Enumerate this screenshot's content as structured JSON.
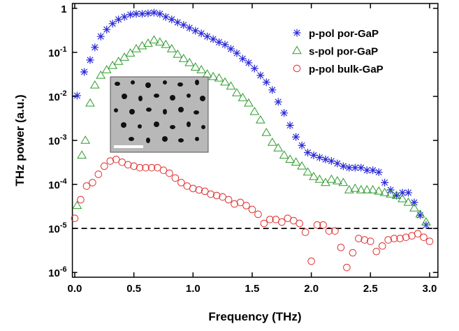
{
  "chart_data": {
    "type": "scatter",
    "x_label": "Frequency (THz)",
    "y_label": "THz power (a.u.)",
    "log_y": true,
    "xlim": [
      -0.02,
      3.07
    ],
    "ylim": [
      7.8e-07,
      1.29
    ],
    "xticks": [
      {
        "value": 0,
        "label": "0.0"
      },
      0.5,
      {
        "value": 1,
        "label": "1.0"
      },
      1.5,
      {
        "value": 2,
        "label": "2.0"
      },
      2.5,
      {
        "value": 3,
        "label": "3.0"
      }
    ],
    "yticks": [
      {
        "value": 1e-06,
        "label": "10",
        "exponent": "-6"
      },
      {
        "value": 1e-05,
        "label": "10",
        "exponent": "-5"
      },
      {
        "value": 0.0001,
        "label": "10",
        "exponent": "-4"
      },
      {
        "value": 0.001,
        "label": "10",
        "exponent": "-3"
      },
      {
        "value": 0.01,
        "label": "10",
        "exponent": "-2"
      },
      {
        "value": 0.1,
        "label": "10",
        "exponent": "-1"
      },
      1
    ],
    "reference_line": 1e-05,
    "legend": "upper right",
    "series": [
      {
        "name": "p-pol por-GaP",
        "color": "#2a2ad8",
        "marker": "asterisk",
        "x": [
          0.02,
          0.08,
          0.13,
          0.17,
          0.22,
          0.27,
          0.32,
          0.37,
          0.42,
          0.47,
          0.52,
          0.57,
          0.62,
          0.67,
          0.72,
          0.77,
          0.82,
          0.87,
          0.92,
          0.97,
          1.02,
          1.07,
          1.12,
          1.17,
          1.22,
          1.27,
          1.32,
          1.37,
          1.42,
          1.47,
          1.52,
          1.57,
          1.62,
          1.67,
          1.72,
          1.77,
          1.82,
          1.87,
          1.92,
          1.97,
          2.02,
          2.07,
          2.12,
          2.17,
          2.22,
          2.27,
          2.32,
          2.37,
          2.42,
          2.47,
          2.52,
          2.57,
          2.62,
          2.67,
          2.72,
          2.77,
          2.82,
          2.87,
          2.92,
          2.97
        ],
        "values": [
          0.0104,
          0.036,
          0.067,
          0.13,
          0.23,
          0.33,
          0.45,
          0.56,
          0.64,
          0.72,
          0.75,
          0.75,
          0.77,
          0.8,
          0.75,
          0.64,
          0.56,
          0.48,
          0.42,
          0.36,
          0.31,
          0.27,
          0.23,
          0.2,
          0.17,
          0.15,
          0.12,
          0.096,
          0.072,
          0.058,
          0.043,
          0.03,
          0.021,
          0.014,
          0.0075,
          0.0042,
          0.0022,
          0.0012,
          0.00077,
          0.00053,
          0.00046,
          0.00041,
          0.00037,
          0.00034,
          0.0003,
          0.00026,
          0.00024,
          0.00024,
          0.00024,
          0.00021,
          0.00021,
          0.00019,
          0.00011,
          7.5e-05,
          5.6e-05,
          6.5e-05,
          6.5e-05,
          3.9e-05,
          2e-05,
          1.2e-05
        ]
      },
      {
        "name": "s-pol por-GaP",
        "color": "#2e9a2e",
        "marker": "triangle",
        "x": [
          0.02,
          0.06,
          0.09,
          0.13,
          0.17,
          0.22,
          0.27,
          0.32,
          0.37,
          0.42,
          0.47,
          0.52,
          0.57,
          0.62,
          0.67,
          0.72,
          0.77,
          0.82,
          0.87,
          0.92,
          0.97,
          1.02,
          1.07,
          1.12,
          1.17,
          1.22,
          1.27,
          1.32,
          1.37,
          1.42,
          1.47,
          1.52,
          1.57,
          1.62,
          1.67,
          1.72,
          1.77,
          1.82,
          1.87,
          1.92,
          1.97,
          2.02,
          2.07,
          2.12,
          2.17,
          2.22,
          2.27,
          2.32,
          2.37,
          2.42,
          2.47,
          2.52,
          2.57,
          2.62,
          2.67,
          2.72,
          2.77,
          2.82,
          2.87,
          2.92,
          2.97
        ],
        "values": [
          3.3e-05,
          0.00046,
          0.001,
          0.007,
          0.018,
          0.03,
          0.04,
          0.05,
          0.062,
          0.077,
          0.096,
          0.12,
          0.14,
          0.16,
          0.19,
          0.17,
          0.15,
          0.12,
          0.09,
          0.072,
          0.058,
          0.046,
          0.04,
          0.032,
          0.028,
          0.026,
          0.021,
          0.017,
          0.012,
          0.0093,
          0.007,
          0.0045,
          0.0029,
          0.0015,
          0.0009,
          0.00067,
          0.00046,
          0.00037,
          0.00032,
          0.00026,
          0.00019,
          0.00015,
          0.00013,
          0.00011,
          0.00013,
          0.00012,
          0.00011,
          7.5e-05,
          8.1e-05,
          7.5e-05,
          7.5e-05,
          7.5e-05,
          7e-05,
          6.5e-05,
          6e-05,
          5.6e-05,
          4.7e-05,
          3.9e-05,
          2.9e-05,
          2.1e-05,
          1.4e-05
        ]
      },
      {
        "name": "p-pol bulk-GaP",
        "color": "#e03030",
        "marker": "circle",
        "x": [
          0,
          0.05,
          0.1,
          0.15,
          0.2,
          0.25,
          0.3,
          0.35,
          0.4,
          0.45,
          0.5,
          0.55,
          0.6,
          0.65,
          0.7,
          0.75,
          0.8,
          0.85,
          0.9,
          0.95,
          1,
          1.05,
          1.1,
          1.15,
          1.2,
          1.25,
          1.3,
          1.35,
          1.4,
          1.45,
          1.5,
          1.55,
          1.6,
          1.65,
          1.7,
          1.75,
          1.8,
          1.85,
          1.9,
          1.95,
          2,
          2.05,
          2.1,
          2.15,
          2.2,
          2.25,
          2.3,
          2.35,
          2.4,
          2.45,
          2.5,
          2.55,
          2.6,
          2.65,
          2.7,
          2.75,
          2.8,
          2.85,
          2.9,
          2.95,
          3
        ],
        "values": [
          1.7e-05,
          4.5e-05,
          9.2e-05,
          0.00011,
          0.00017,
          0.00026,
          0.00034,
          0.00037,
          0.00032,
          0.00028,
          0.00026,
          0.00024,
          0.00024,
          0.00024,
          0.00024,
          0.00021,
          0.00018,
          0.00014,
          0.00011,
          9.2e-05,
          8.1e-05,
          7.5e-05,
          7e-05,
          6e-05,
          5.6e-05,
          5.2e-05,
          4.5e-05,
          3.6e-05,
          3.9e-05,
          3.3e-05,
          2.7e-05,
          2.1e-05,
          1.3e-05,
          1.6e-05,
          1.6e-05,
          1.4e-05,
          1.7e-05,
          1.5e-05,
          1.3e-05,
          8.2e-06,
          1.8e-06,
          1.2e-05,
          1.2e-05,
          8.8e-06,
          8.8e-06,
          3.7e-06,
          1.3e-06,
          2.8e-06,
          5.9e-06,
          5.5e-06,
          5.1e-06,
          3e-06,
          4e-06,
          5.5e-06,
          5.9e-06,
          5.9e-06,
          6.3e-06,
          6.8e-06,
          7.6e-06,
          6.3e-06,
          5.1e-06
        ]
      }
    ]
  }
}
